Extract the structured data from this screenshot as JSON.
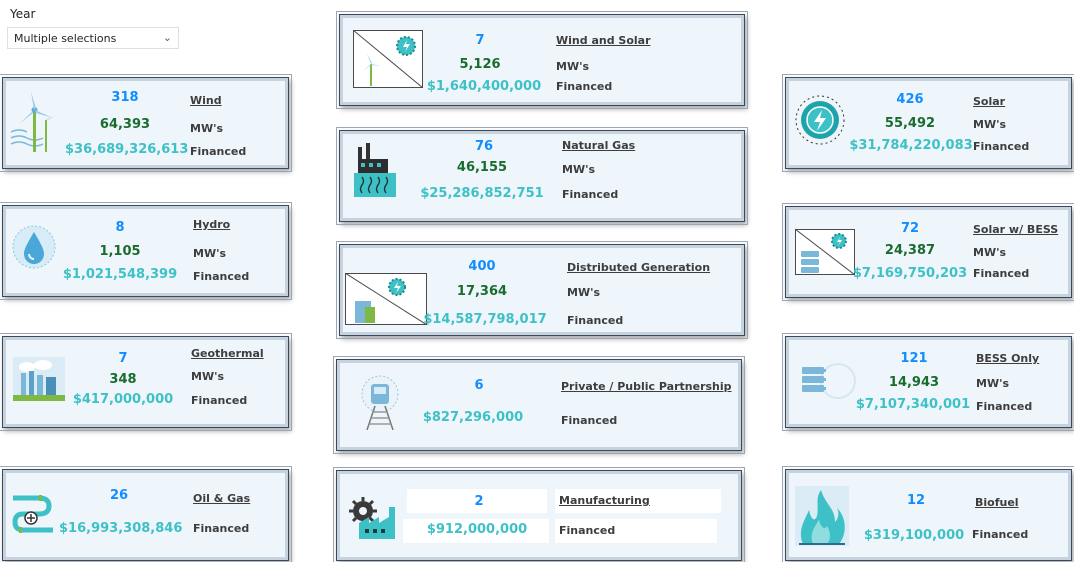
{
  "filter": {
    "label": "Year",
    "value": "Multiple selections"
  },
  "cards": {
    "wind": {
      "name": "Wind",
      "count": "318",
      "mw": "64,393",
      "unit": "MW's",
      "money": "$36,689,326,613",
      "fin": "Financed",
      "icon": "wind-turbine-icon"
    },
    "hydro": {
      "name": "Hydro",
      "count": "8",
      "mw": "1,105",
      "unit": "MW's",
      "money": "$1,021,548,399",
      "fin": "Financed",
      "icon": "water-drop-icon"
    },
    "geothermal": {
      "name": "Geothermal",
      "count": "7",
      "mw": "348",
      "unit": "MW's",
      "money": "$417,000,000",
      "fin": "Financed",
      "icon": "geothermal-plant-icon"
    },
    "oilgas": {
      "name": "Oil & Gas",
      "count": "26",
      "money": "$16,993,308,846",
      "fin": "Financed",
      "icon": "pipeline-icon"
    },
    "windsolar": {
      "name": "Wind and Solar",
      "count": "7",
      "mw": "5,126",
      "unit": "MW's",
      "money": "$1,640,400,000",
      "fin": "Financed",
      "icon": "wind-solar-icon"
    },
    "naturalgas": {
      "name": "Natural Gas",
      "count": "76",
      "mw": "46,155",
      "unit": "MW's",
      "money": "$25,286,852,751",
      "fin": "Financed",
      "icon": "gas-plant-icon"
    },
    "distgen": {
      "name": "Distributed Generation",
      "count": "400",
      "mw": "17,364",
      "unit": "MW's",
      "money": "$14,587,798,017",
      "fin": "Financed",
      "icon": "distributed-generation-icon"
    },
    "ppp": {
      "name": "Private / Public Partnership",
      "count": "6",
      "money": "$827,296,000",
      "fin": "Financed",
      "icon": "train-icon"
    },
    "manufacturing": {
      "name": "Manufacturing",
      "count": "2",
      "money": "$912,000,000",
      "fin": "Financed",
      "icon": "factory-gear-icon"
    },
    "solar": {
      "name": "Solar",
      "count": "426",
      "mw": "55,492",
      "unit": "MW's",
      "money": "$31,784,220,083",
      "fin": "Financed",
      "icon": "solar-gear-icon"
    },
    "solarbess": {
      "name": "Solar w/ BESS",
      "count": "72",
      "mw": "24,387",
      "unit": "MW's",
      "money": "$7,169,750,203",
      "fin": "Financed",
      "icon": "solar-battery-icon"
    },
    "bess": {
      "name": "BESS Only",
      "count": "121",
      "mw": "14,943",
      "unit": "MW's",
      "money": "$7,107,340,001",
      "fin": "Financed",
      "icon": "battery-storage-icon"
    },
    "biofuel": {
      "name": "Biofuel",
      "count": "12",
      "money": "$319,100,000",
      "fin": "Financed",
      "icon": "flame-icon"
    }
  }
}
